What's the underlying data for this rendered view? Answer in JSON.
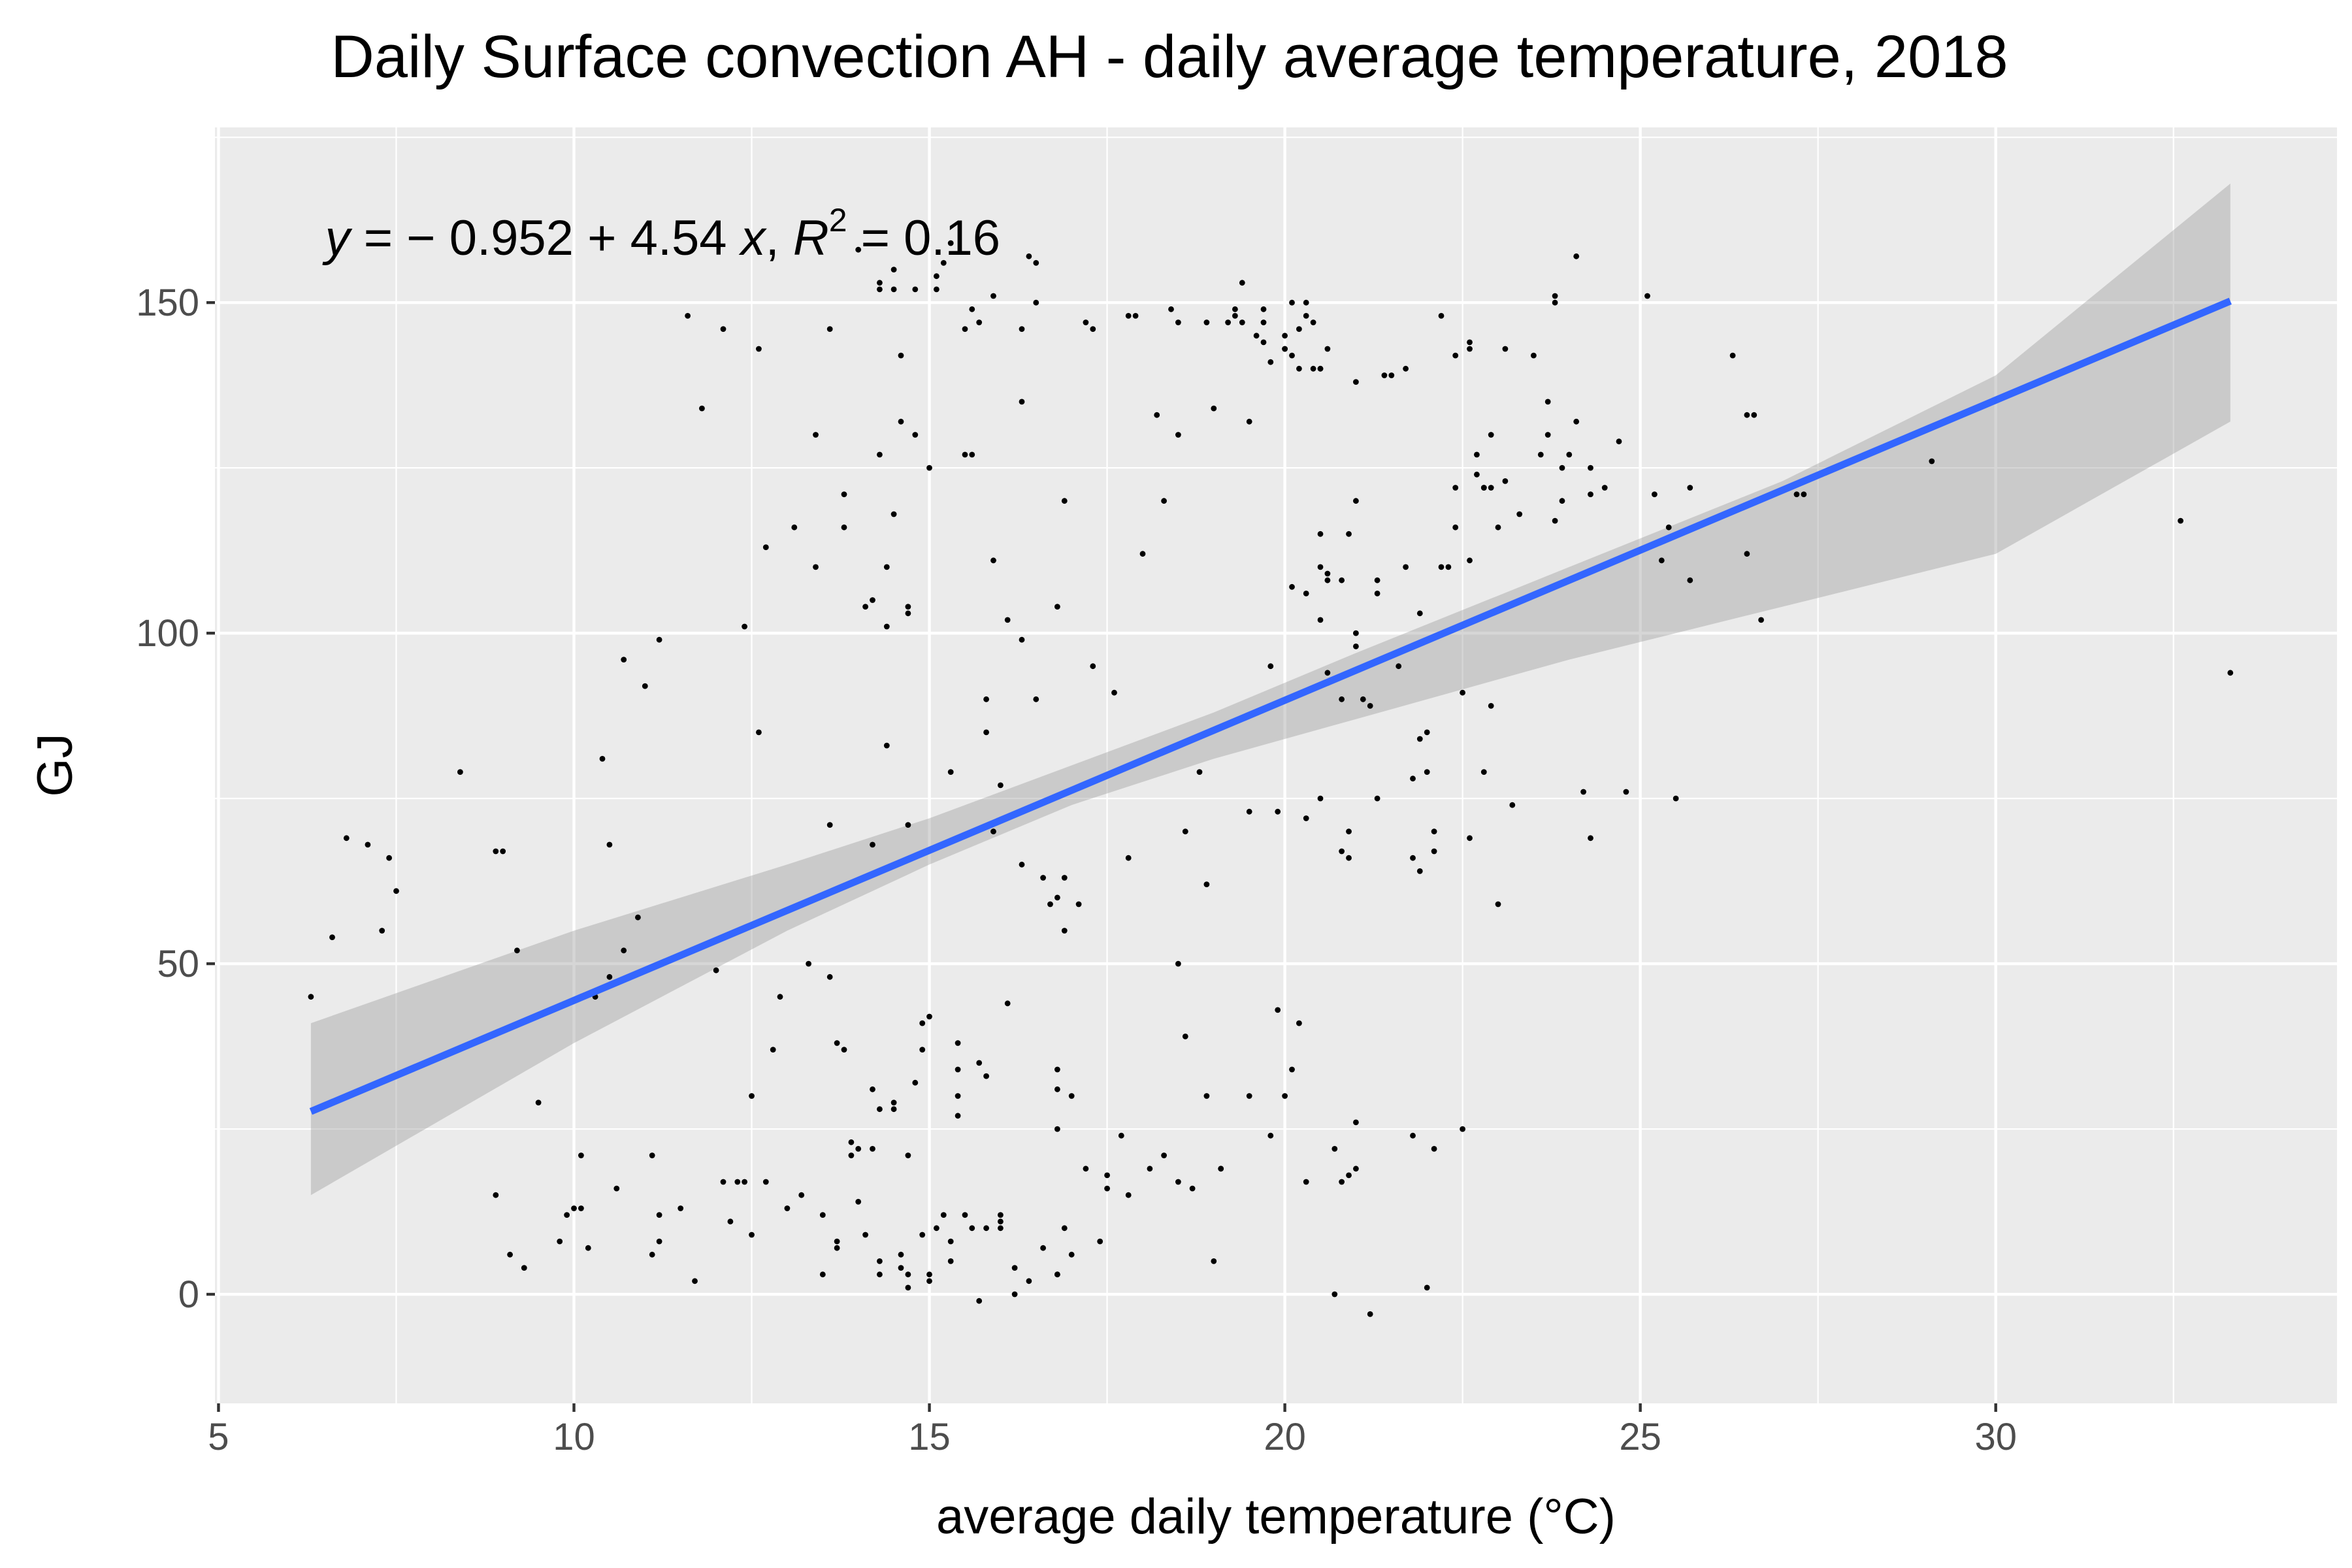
{
  "chart_data": {
    "type": "scatter",
    "title": "Daily Surface convection AH - daily average temperature, 2018",
    "xlabel": "average daily temperature (°C)",
    "ylabel": "GJ",
    "xlim": [
      4.95,
      34.8
    ],
    "ylim": [
      -16.5,
      176.5
    ],
    "x_ticks": [
      5,
      10,
      15,
      20,
      25,
      30
    ],
    "y_ticks": [
      0,
      50,
      100,
      150
    ],
    "x_tick_labels": [
      "5",
      "10",
      "15",
      "20",
      "25",
      "30"
    ],
    "y_tick_labels": [
      "0",
      "50",
      "100",
      "150"
    ],
    "grid": true,
    "annotation": {
      "y_var": "y",
      "eq_mid": " = − 0.952 + 4.54 ",
      "x_var": "x",
      "r_prefix": ", ",
      "r_var": "R",
      "r_exp": "2",
      "r_suffix": " = 0.16",
      "x": 6.5,
      "y": 160
    },
    "fit": {
      "intercept": -0.952,
      "slope": 4.54,
      "r_squared": 0.16,
      "x_range": [
        6.3,
        33.3
      ],
      "color": "#3366ff"
    },
    "confidence_band": {
      "color": "#999999",
      "x": [
        6.3,
        10,
        13,
        15,
        17,
        19,
        21,
        24,
        27,
        30,
        33.3
      ],
      "lower": [
        15,
        38,
        55,
        65,
        74,
        81,
        87,
        96,
        104,
        112,
        132
      ],
      "upper": [
        41,
        55,
        65,
        72,
        80,
        88,
        97,
        110,
        123,
        139,
        168
      ]
    },
    "point_color": "#000000",
    "points": [
      [
        6.3,
        45
      ],
      [
        6.6,
        54
      ],
      [
        6.8,
        69
      ],
      [
        7.1,
        68
      ],
      [
        7.3,
        55
      ],
      [
        7.4,
        66
      ],
      [
        7.5,
        61
      ],
      [
        8.4,
        79
      ],
      [
        8.9,
        15
      ],
      [
        8.9,
        67
      ],
      [
        9.0,
        67
      ],
      [
        9.1,
        6
      ],
      [
        9.2,
        52
      ],
      [
        9.3,
        4
      ],
      [
        9.5,
        29
      ],
      [
        9.8,
        8
      ],
      [
        9.9,
        12
      ],
      [
        10.0,
        13
      ],
      [
        10.1,
        21
      ],
      [
        10.1,
        13
      ],
      [
        10.2,
        7
      ],
      [
        10.3,
        45
      ],
      [
        10.4,
        81
      ],
      [
        10.5,
        48
      ],
      [
        10.5,
        68
      ],
      [
        10.6,
        16
      ],
      [
        10.7,
        52
      ],
      [
        10.7,
        96
      ],
      [
        10.9,
        57
      ],
      [
        11.0,
        92
      ],
      [
        11.1,
        21
      ],
      [
        11.1,
        6
      ],
      [
        11.2,
        99
      ],
      [
        11.2,
        12
      ],
      [
        11.2,
        8
      ],
      [
        11.5,
        13
      ],
      [
        11.6,
        148
      ],
      [
        11.7,
        2
      ],
      [
        11.8,
        134
      ],
      [
        12.0,
        49
      ],
      [
        12.1,
        146
      ],
      [
        12.1,
        17
      ],
      [
        12.2,
        11
      ],
      [
        12.3,
        17
      ],
      [
        12.4,
        17
      ],
      [
        12.4,
        101
      ],
      [
        12.5,
        9
      ],
      [
        12.5,
        30
      ],
      [
        12.6,
        85
      ],
      [
        12.6,
        143
      ],
      [
        12.7,
        113
      ],
      [
        12.7,
        17
      ],
      [
        12.8,
        37
      ],
      [
        12.9,
        45
      ],
      [
        13.0,
        13
      ],
      [
        13.1,
        116
      ],
      [
        13.2,
        15
      ],
      [
        13.3,
        50
      ],
      [
        13.4,
        110
      ],
      [
        13.4,
        130
      ],
      [
        13.5,
        12
      ],
      [
        13.5,
        3
      ],
      [
        13.6,
        71
      ],
      [
        13.6,
        48
      ],
      [
        13.6,
        146
      ],
      [
        13.7,
        8
      ],
      [
        13.7,
        7
      ],
      [
        13.7,
        38
      ],
      [
        13.8,
        37
      ],
      [
        13.8,
        116
      ],
      [
        13.8,
        121
      ],
      [
        13.9,
        21
      ],
      [
        13.9,
        23
      ],
      [
        14.0,
        14
      ],
      [
        14.0,
        22
      ],
      [
        14.0,
        158
      ],
      [
        14.1,
        9
      ],
      [
        14.1,
        104
      ],
      [
        14.2,
        105
      ],
      [
        14.2,
        31
      ],
      [
        14.2,
        68
      ],
      [
        14.2,
        22
      ],
      [
        14.3,
        127
      ],
      [
        14.3,
        5
      ],
      [
        14.3,
        28
      ],
      [
        14.3,
        152
      ],
      [
        14.3,
        153
      ],
      [
        14.3,
        3
      ],
      [
        14.4,
        101
      ],
      [
        14.4,
        83
      ],
      [
        14.4,
        110
      ],
      [
        14.5,
        29
      ],
      [
        14.5,
        118
      ],
      [
        14.5,
        155
      ],
      [
        14.5,
        28
      ],
      [
        14.5,
        152
      ],
      [
        14.6,
        142
      ],
      [
        14.6,
        132
      ],
      [
        14.6,
        6
      ],
      [
        14.6,
        4
      ],
      [
        14.7,
        3
      ],
      [
        14.7,
        103
      ],
      [
        14.7,
        104
      ],
      [
        14.7,
        21
      ],
      [
        14.7,
        71
      ],
      [
        14.7,
        1
      ],
      [
        14.8,
        130
      ],
      [
        14.8,
        152
      ],
      [
        14.8,
        32
      ],
      [
        14.9,
        41
      ],
      [
        14.9,
        37
      ],
      [
        14.9,
        9
      ],
      [
        15.0,
        2
      ],
      [
        15.0,
        42
      ],
      [
        15.0,
        3
      ],
      [
        15.0,
        125
      ],
      [
        15.1,
        10
      ],
      [
        15.1,
        154
      ],
      [
        15.1,
        152
      ],
      [
        15.2,
        156
      ],
      [
        15.2,
        12
      ],
      [
        15.3,
        5
      ],
      [
        15.3,
        79
      ],
      [
        15.3,
        159
      ],
      [
        15.3,
        8
      ],
      [
        15.4,
        34
      ],
      [
        15.4,
        27
      ],
      [
        15.4,
        30
      ],
      [
        15.4,
        38
      ],
      [
        15.5,
        12
      ],
      [
        15.5,
        146
      ],
      [
        15.5,
        127
      ],
      [
        15.6,
        127
      ],
      [
        15.6,
        10
      ],
      [
        15.6,
        149
      ],
      [
        15.7,
        -1
      ],
      [
        15.7,
        147
      ],
      [
        15.7,
        35
      ],
      [
        15.8,
        10
      ],
      [
        15.8,
        90
      ],
      [
        15.8,
        85
      ],
      [
        15.8,
        33
      ],
      [
        15.9,
        151
      ],
      [
        15.9,
        111
      ],
      [
        15.9,
        70
      ],
      [
        16.0,
        10
      ],
      [
        16.0,
        12
      ],
      [
        16.0,
        77
      ],
      [
        16.0,
        11
      ],
      [
        16.1,
        102
      ],
      [
        16.1,
        44
      ],
      [
        16.2,
        0
      ],
      [
        16.2,
        4
      ],
      [
        16.3,
        146
      ],
      [
        16.3,
        99
      ],
      [
        16.3,
        135
      ],
      [
        16.3,
        65
      ],
      [
        16.4,
        157
      ],
      [
        16.4,
        2
      ],
      [
        16.5,
        90
      ],
      [
        16.5,
        150
      ],
      [
        16.5,
        156
      ],
      [
        16.6,
        7
      ],
      [
        16.6,
        63
      ],
      [
        16.7,
        59
      ],
      [
        16.8,
        34
      ],
      [
        16.8,
        31
      ],
      [
        16.8,
        3
      ],
      [
        16.8,
        3
      ],
      [
        16.8,
        25
      ],
      [
        16.8,
        104
      ],
      [
        16.8,
        60
      ],
      [
        16.9,
        120
      ],
      [
        16.9,
        55
      ],
      [
        16.9,
        63
      ],
      [
        16.9,
        10
      ],
      [
        17.0,
        30
      ],
      [
        17.0,
        6
      ],
      [
        17.1,
        59
      ],
      [
        17.2,
        147
      ],
      [
        17.2,
        19
      ],
      [
        17.3,
        146
      ],
      [
        17.3,
        95
      ],
      [
        17.4,
        8
      ],
      [
        17.5,
        16
      ],
      [
        17.5,
        18
      ],
      [
        17.6,
        91
      ],
      [
        17.7,
        24
      ],
      [
        17.8,
        66
      ],
      [
        17.8,
        15
      ],
      [
        17.8,
        148
      ],
      [
        17.9,
        148
      ],
      [
        18.0,
        112
      ],
      [
        18.1,
        19
      ],
      [
        18.2,
        133
      ],
      [
        18.3,
        120
      ],
      [
        18.3,
        21
      ],
      [
        18.4,
        149
      ],
      [
        18.5,
        130
      ],
      [
        18.5,
        17
      ],
      [
        18.5,
        50
      ],
      [
        18.5,
        147
      ],
      [
        18.6,
        70
      ],
      [
        18.6,
        39
      ],
      [
        18.7,
        16
      ],
      [
        18.8,
        79
      ],
      [
        18.9,
        30
      ],
      [
        18.9,
        62
      ],
      [
        18.9,
        147
      ],
      [
        19.0,
        5
      ],
      [
        19.0,
        134
      ],
      [
        19.1,
        19
      ],
      [
        19.1,
        19
      ],
      [
        19.2,
        147
      ],
      [
        19.3,
        149
      ],
      [
        19.3,
        148
      ],
      [
        19.4,
        153
      ],
      [
        19.4,
        147
      ],
      [
        19.5,
        132
      ],
      [
        19.5,
        30
      ],
      [
        19.5,
        73
      ],
      [
        19.6,
        145
      ],
      [
        19.7,
        147
      ],
      [
        19.7,
        149
      ],
      [
        19.7,
        144
      ],
      [
        19.8,
        141
      ],
      [
        19.8,
        24
      ],
      [
        19.8,
        95
      ],
      [
        19.9,
        73
      ],
      [
        19.9,
        43
      ],
      [
        20.0,
        30
      ],
      [
        20.0,
        145
      ],
      [
        20.0,
        143
      ],
      [
        20.0,
        143
      ],
      [
        20.1,
        142
      ],
      [
        20.1,
        150
      ],
      [
        20.1,
        34
      ],
      [
        20.1,
        107
      ],
      [
        20.2,
        146
      ],
      [
        20.2,
        140
      ],
      [
        20.2,
        41
      ],
      [
        20.3,
        106
      ],
      [
        20.3,
        148
      ],
      [
        20.3,
        150
      ],
      [
        20.3,
        17
      ],
      [
        20.3,
        72
      ],
      [
        20.4,
        140
      ],
      [
        20.4,
        147
      ],
      [
        20.5,
        140
      ],
      [
        20.5,
        115
      ],
      [
        20.5,
        75
      ],
      [
        20.5,
        102
      ],
      [
        20.5,
        110
      ],
      [
        20.5,
        140
      ],
      [
        20.6,
        94
      ],
      [
        20.6,
        143
      ],
      [
        20.6,
        109
      ],
      [
        20.6,
        108
      ],
      [
        20.7,
        22
      ],
      [
        20.7,
        0
      ],
      [
        20.8,
        90
      ],
      [
        20.8,
        67
      ],
      [
        20.8,
        108
      ],
      [
        20.8,
        17
      ],
      [
        20.9,
        115
      ],
      [
        20.9,
        18
      ],
      [
        20.9,
        70
      ],
      [
        20.9,
        66
      ],
      [
        21.0,
        98
      ],
      [
        21.0,
        100
      ],
      [
        21.0,
        120
      ],
      [
        21.0,
        19
      ],
      [
        21.0,
        26
      ],
      [
        21.0,
        138
      ],
      [
        21.1,
        90
      ],
      [
        21.2,
        -3
      ],
      [
        21.2,
        89
      ],
      [
        21.3,
        108
      ],
      [
        21.3,
        106
      ],
      [
        21.3,
        75
      ],
      [
        21.4,
        139
      ],
      [
        21.5,
        139
      ],
      [
        21.6,
        95
      ],
      [
        21.7,
        140
      ],
      [
        21.7,
        110
      ],
      [
        21.8,
        66
      ],
      [
        21.8,
        24
      ],
      [
        21.8,
        78
      ],
      [
        21.9,
        103
      ],
      [
        21.9,
        64
      ],
      [
        21.9,
        84
      ],
      [
        22.0,
        79
      ],
      [
        22.0,
        1
      ],
      [
        22.0,
        85
      ],
      [
        22.1,
        22
      ],
      [
        22.1,
        70
      ],
      [
        22.1,
        67
      ],
      [
        22.2,
        148
      ],
      [
        22.2,
        110
      ],
      [
        22.3,
        110
      ],
      [
        22.4,
        142
      ],
      [
        22.4,
        122
      ],
      [
        22.4,
        116
      ],
      [
        22.5,
        91
      ],
      [
        22.5,
        25
      ],
      [
        22.6,
        143
      ],
      [
        22.6,
        144
      ],
      [
        22.6,
        69
      ],
      [
        22.6,
        111
      ],
      [
        22.7,
        124
      ],
      [
        22.7,
        127
      ],
      [
        22.8,
        122
      ],
      [
        22.8,
        122
      ],
      [
        22.8,
        79
      ],
      [
        22.9,
        89
      ],
      [
        22.9,
        122
      ],
      [
        22.9,
        130
      ],
      [
        23.0,
        59
      ],
      [
        23.0,
        116
      ],
      [
        23.1,
        123
      ],
      [
        23.1,
        143
      ],
      [
        23.2,
        74
      ],
      [
        23.3,
        118
      ],
      [
        23.5,
        142
      ],
      [
        23.6,
        127
      ],
      [
        23.7,
        130
      ],
      [
        23.7,
        135
      ],
      [
        23.8,
        117
      ],
      [
        23.8,
        151
      ],
      [
        23.8,
        150
      ],
      [
        23.9,
        120
      ],
      [
        23.9,
        125
      ],
      [
        24.0,
        127
      ],
      [
        24.1,
        157
      ],
      [
        24.1,
        132
      ],
      [
        24.2,
        76
      ],
      [
        24.3,
        121
      ],
      [
        24.3,
        69
      ],
      [
        24.3,
        125
      ],
      [
        24.5,
        122
      ],
      [
        24.7,
        129
      ],
      [
        24.8,
        76
      ],
      [
        25.1,
        151
      ],
      [
        25.2,
        121
      ],
      [
        25.3,
        111
      ],
      [
        25.4,
        116
      ],
      [
        25.5,
        75
      ],
      [
        25.7,
        122
      ],
      [
        25.7,
        108
      ],
      [
        26.3,
        142
      ],
      [
        26.5,
        112
      ],
      [
        26.5,
        133
      ],
      [
        26.6,
        133
      ],
      [
        26.7,
        102
      ],
      [
        27.2,
        121
      ],
      [
        27.3,
        121
      ],
      [
        29.1,
        126
      ],
      [
        32.6,
        117
      ],
      [
        33.3,
        94
      ]
    ]
  }
}
